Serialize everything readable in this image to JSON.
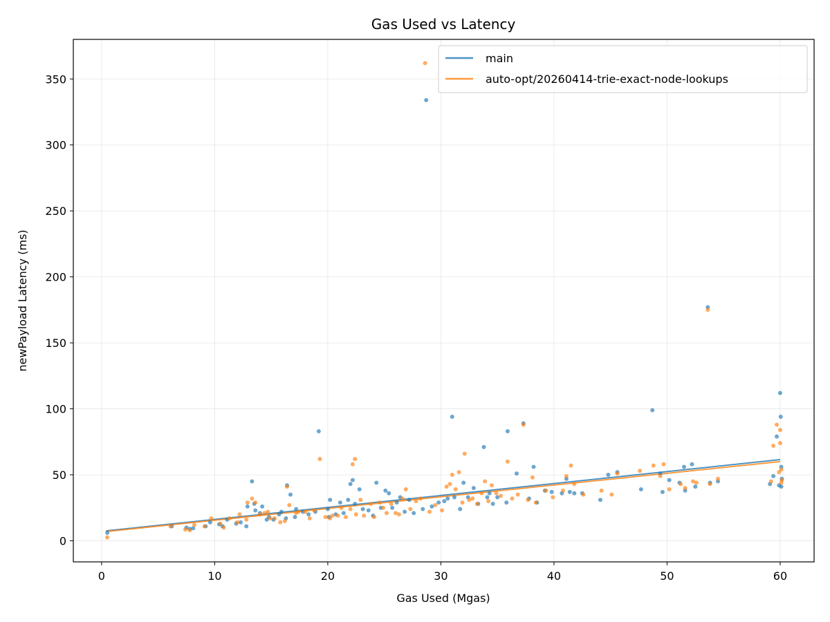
{
  "chart_data": {
    "type": "scatter",
    "title": "Gas Used vs Latency",
    "xlabel": "Gas Used (Mgas)",
    "ylabel": "newPayload Latency (ms)",
    "xlim": [
      -2.5,
      63
    ],
    "ylim": [
      -16,
      380
    ],
    "xticks": [
      0,
      10,
      20,
      30,
      40,
      50,
      60
    ],
    "yticks": [
      0,
      50,
      100,
      150,
      200,
      250,
      300,
      350
    ],
    "grid": true,
    "legend_position": "top-right",
    "series": [
      {
        "name": "main",
        "color": "#1f77b4",
        "trend": [
          [
            0.4,
            7.5
          ],
          [
            60,
            61.5
          ]
        ],
        "points": [
          [
            0.5,
            6
          ],
          [
            6.2,
            11
          ],
          [
            7.5,
            10
          ],
          [
            7.8,
            9
          ],
          [
            8.1,
            9.5
          ],
          [
            9.2,
            11
          ],
          [
            9.6,
            14
          ],
          [
            10.4,
            12.5
          ],
          [
            10.7,
            11
          ],
          [
            11.1,
            16
          ],
          [
            11.9,
            13
          ],
          [
            12.3,
            14
          ],
          [
            12.8,
            11
          ],
          [
            12.9,
            26
          ],
          [
            13.3,
            45
          ],
          [
            13.5,
            28
          ],
          [
            13.6,
            23
          ],
          [
            14,
            21
          ],
          [
            14.2,
            26
          ],
          [
            14.6,
            16
          ],
          [
            14.8,
            18
          ],
          [
            15.2,
            16
          ],
          [
            15.7,
            20
          ],
          [
            15.9,
            22
          ],
          [
            16.3,
            17
          ],
          [
            16.4,
            42
          ],
          [
            16.7,
            35
          ],
          [
            17.1,
            18
          ],
          [
            17.2,
            24
          ],
          [
            17.8,
            22
          ],
          [
            18.3,
            20
          ],
          [
            18.9,
            22
          ],
          [
            19.2,
            83
          ],
          [
            20,
            24
          ],
          [
            20.1,
            18
          ],
          [
            20.2,
            31
          ],
          [
            20.7,
            20
          ],
          [
            21.1,
            29
          ],
          [
            21.4,
            21
          ],
          [
            21.8,
            31
          ],
          [
            22,
            43
          ],
          [
            22.2,
            46
          ],
          [
            22.4,
            28
          ],
          [
            22.8,
            39
          ],
          [
            23.1,
            24
          ],
          [
            23.6,
            23
          ],
          [
            24,
            19
          ],
          [
            24.3,
            44
          ],
          [
            24.7,
            25
          ],
          [
            25.1,
            38
          ],
          [
            25.4,
            36
          ],
          [
            25.7,
            25
          ],
          [
            26.1,
            29
          ],
          [
            26.4,
            33
          ],
          [
            26.8,
            22
          ],
          [
            27.2,
            31
          ],
          [
            27.6,
            21
          ],
          [
            28.4,
            24
          ],
          [
            28.7,
            334
          ],
          [
            29.2,
            26
          ],
          [
            29.8,
            29
          ],
          [
            30.3,
            30
          ],
          [
            30.6,
            32
          ],
          [
            31,
            94
          ],
          [
            31.2,
            33
          ],
          [
            31.7,
            24
          ],
          [
            32,
            44
          ],
          [
            32.4,
            33
          ],
          [
            32.9,
            40
          ],
          [
            33.3,
            28
          ],
          [
            33.8,
            71
          ],
          [
            34.1,
            33
          ],
          [
            34.3,
            36
          ],
          [
            34.6,
            28
          ],
          [
            35,
            33
          ],
          [
            35.8,
            29
          ],
          [
            35.9,
            83
          ],
          [
            36.7,
            51
          ],
          [
            37.3,
            89
          ],
          [
            37.8,
            32
          ],
          [
            38.2,
            56
          ],
          [
            38.5,
            29
          ],
          [
            39.2,
            38
          ],
          [
            39.8,
            37
          ],
          [
            40.7,
            36
          ],
          [
            41.1,
            47
          ],
          [
            41.4,
            37
          ],
          [
            41.8,
            36
          ],
          [
            42.5,
            36
          ],
          [
            44.1,
            31
          ],
          [
            44.8,
            50
          ],
          [
            45.6,
            52
          ],
          [
            47.7,
            39
          ],
          [
            48.7,
            99
          ],
          [
            49.4,
            51
          ],
          [
            49.6,
            37
          ],
          [
            50.2,
            46
          ],
          [
            51.1,
            44
          ],
          [
            51.5,
            56
          ],
          [
            51.6,
            38
          ],
          [
            52.2,
            58
          ],
          [
            52.5,
            41
          ],
          [
            53.6,
            177
          ],
          [
            53.8,
            44
          ],
          [
            54.5,
            45
          ],
          [
            59.1,
            43
          ],
          [
            59.4,
            49
          ],
          [
            59.7,
            79
          ],
          [
            59.9,
            42
          ],
          [
            60,
            112
          ],
          [
            60.05,
            94
          ],
          [
            60.1,
            41
          ],
          [
            60.1,
            56
          ],
          [
            60.15,
            47
          ]
        ]
      },
      {
        "name": "auto-opt/20260414-trie-exact-node-lookups",
        "color": "#ff7f0e",
        "trend": [
          [
            0.4,
            7
          ],
          [
            60,
            60
          ]
        ],
        "points": [
          [
            0.5,
            2.5
          ],
          [
            6.1,
            11
          ],
          [
            7.4,
            8.5
          ],
          [
            7.8,
            8
          ],
          [
            8.2,
            12
          ],
          [
            9.1,
            11
          ],
          [
            9.7,
            17
          ],
          [
            10.5,
            13
          ],
          [
            10.8,
            10
          ],
          [
            11.3,
            17
          ],
          [
            12,
            14
          ],
          [
            12.2,
            20
          ],
          [
            12.8,
            16
          ],
          [
            12.9,
            29
          ],
          [
            13.3,
            32
          ],
          [
            13.6,
            29
          ],
          [
            14,
            20
          ],
          [
            14.4,
            21
          ],
          [
            14.7,
            22
          ],
          [
            14.9,
            17
          ],
          [
            15.3,
            17
          ],
          [
            15.8,
            14
          ],
          [
            16.2,
            15
          ],
          [
            16.4,
            41
          ],
          [
            16.6,
            27
          ],
          [
            17.2,
            21
          ],
          [
            17.4,
            22
          ],
          [
            18,
            22
          ],
          [
            18.4,
            17
          ],
          [
            18.8,
            23
          ],
          [
            19.3,
            62
          ],
          [
            19.8,
            18
          ],
          [
            20.2,
            17
          ],
          [
            20.4,
            19
          ],
          [
            20.9,
            19
          ],
          [
            21.2,
            25
          ],
          [
            21.6,
            18
          ],
          [
            22,
            24
          ],
          [
            22.2,
            58
          ],
          [
            22.4,
            62
          ],
          [
            22.5,
            20
          ],
          [
            22.9,
            31
          ],
          [
            23.2,
            19
          ],
          [
            23.8,
            28
          ],
          [
            24.1,
            18
          ],
          [
            24.6,
            29
          ],
          [
            24.9,
            25
          ],
          [
            25.2,
            21
          ],
          [
            25.6,
            28
          ],
          [
            26,
            21
          ],
          [
            26.3,
            20
          ],
          [
            26.6,
            32
          ],
          [
            26.9,
            39
          ],
          [
            27.3,
            24
          ],
          [
            27.8,
            30
          ],
          [
            28.2,
            32
          ],
          [
            28.6,
            362
          ],
          [
            29,
            22
          ],
          [
            29.5,
            27
          ],
          [
            30.1,
            23
          ],
          [
            30.5,
            41
          ],
          [
            30.8,
            43
          ],
          [
            31,
            50
          ],
          [
            31.3,
            39
          ],
          [
            31.6,
            52
          ],
          [
            31.9,
            29
          ],
          [
            32.1,
            66
          ],
          [
            32.5,
            31
          ],
          [
            32.8,
            32
          ],
          [
            33.2,
            28
          ],
          [
            33.6,
            36
          ],
          [
            33.9,
            45
          ],
          [
            34.2,
            30
          ],
          [
            34.5,
            42
          ],
          [
            34.9,
            36
          ],
          [
            35.3,
            34
          ],
          [
            35.9,
            60
          ],
          [
            36.3,
            32
          ],
          [
            36.8,
            35
          ],
          [
            37.3,
            88
          ],
          [
            37.7,
            31
          ],
          [
            38.1,
            48
          ],
          [
            38.4,
            29
          ],
          [
            39.3,
            38
          ],
          [
            39.9,
            33
          ],
          [
            40.8,
            38
          ],
          [
            41.1,
            49
          ],
          [
            41.5,
            57
          ],
          [
            41.8,
            43
          ],
          [
            42.6,
            35
          ],
          [
            44.2,
            38
          ],
          [
            45.1,
            35
          ],
          [
            45.6,
            51
          ],
          [
            47.6,
            53
          ],
          [
            48.8,
            57
          ],
          [
            49.4,
            49
          ],
          [
            49.7,
            58
          ],
          [
            50.2,
            39
          ],
          [
            51.2,
            43
          ],
          [
            51.6,
            40
          ],
          [
            52.3,
            45
          ],
          [
            52.6,
            44
          ],
          [
            53.6,
            175
          ],
          [
            53.8,
            43
          ],
          [
            54.5,
            47
          ],
          [
            59.2,
            45
          ],
          [
            59.4,
            72
          ],
          [
            59.7,
            88
          ],
          [
            59.9,
            52
          ],
          [
            60,
            84
          ],
          [
            60,
            74
          ],
          [
            60.1,
            44
          ],
          [
            60.1,
            54
          ],
          [
            60.15,
            46
          ]
        ]
      }
    ]
  }
}
